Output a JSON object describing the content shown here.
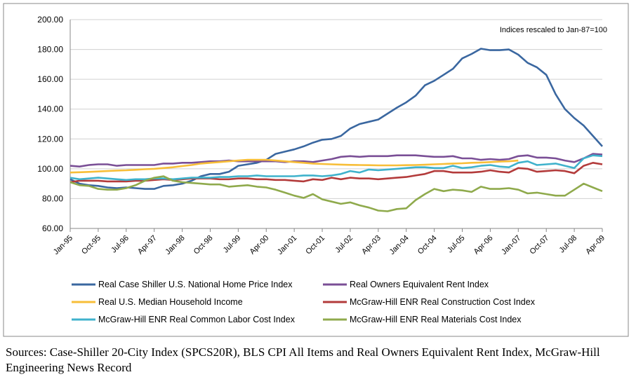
{
  "chart_data": {
    "type": "line",
    "annotation": "Indices rescaled to Jan-87=100",
    "source": "Sources: Case-Shiller 20-City Index (SPCS20R), BLS CPI All Items and Real Owners Equivalent Rent Index, McGraw-Hill Engineering News Record",
    "categories": [
      "Jan-95",
      null,
      null,
      "Oct-95",
      null,
      null,
      "Jul-96",
      null,
      null,
      "Apr-97",
      null,
      null,
      "Jan-98",
      null,
      null,
      "Oct-98",
      null,
      null,
      "Jul-99",
      null,
      null,
      "Apr-00",
      null,
      null,
      "Jan-01",
      null,
      null,
      "Oct-01",
      null,
      null,
      "Jul-02",
      null,
      null,
      "Apr-03",
      null,
      null,
      "Jan-04",
      null,
      null,
      "Oct-04",
      null,
      null,
      "Jul-05",
      null,
      null,
      "Apr-06",
      null,
      null,
      "Jan-07",
      null,
      null,
      "Oct-07",
      null,
      null,
      "Jul-08",
      null,
      null,
      "Apr-09"
    ],
    "ylim": [
      60,
      200
    ],
    "yticks": [
      {
        "value": 60,
        "label": "60.00"
      },
      {
        "value": 80,
        "label": "80.00"
      },
      {
        "value": 100,
        "label": "100.00"
      },
      {
        "value": 120,
        "label": "120.00"
      },
      {
        "value": 140,
        "label": "140.00"
      },
      {
        "value": 160,
        "label": "160.00"
      },
      {
        "value": 180,
        "label": "180.00"
      },
      {
        "value": 200,
        "label": "200.00"
      }
    ],
    "grid": true,
    "series": [
      {
        "name": "Real Case Shiller U.S. National Home Price Index",
        "color": "#3a67a0",
        "values": [
          93,
          90,
          89,
          88.5,
          87.5,
          87,
          87.5,
          87,
          86.5,
          86.5,
          88.5,
          89,
          90,
          92,
          95,
          96.5,
          96.5,
          98,
          102,
          103,
          104,
          106,
          110,
          111.5,
          113,
          115,
          117.5,
          119.5,
          120,
          122,
          127,
          130,
          131.5,
          133,
          137,
          141,
          144.5,
          149,
          156,
          159,
          163,
          167,
          174,
          177,
          180.5,
          179.5,
          179.5,
          180,
          176.5,
          171,
          168,
          163,
          150,
          140,
          134,
          129,
          122,
          115
        ]
      },
      {
        "name": "Real Owners Equivalent Rent Index",
        "color": "#7a4f96",
        "values": [
          102,
          101.5,
          102.5,
          103,
          103,
          102,
          102.5,
          102.5,
          102.5,
          102.5,
          103.5,
          103.5,
          104,
          104,
          104.5,
          105,
          105,
          105.5,
          105,
          105,
          105,
          105,
          105,
          104.5,
          105,
          105,
          104.5,
          105.5,
          106.5,
          108,
          108.5,
          108,
          108.5,
          108.5,
          108.5,
          109,
          109,
          109,
          108.5,
          108,
          108,
          108.5,
          107,
          107,
          106,
          106.5,
          106,
          106.5,
          108.5,
          109,
          107.5,
          107.5,
          107,
          105.5,
          104.5,
          107,
          110,
          109.5
        ]
      },
      {
        "name": "Real U.S. Median Household Income",
        "color": "#f7be38",
        "values": [
          97.5,
          97.7,
          97.9,
          98.2,
          98.5,
          98.8,
          99,
          99.3,
          99.7,
          100,
          100.5,
          101,
          101.8,
          102.5,
          103.5,
          104,
          104.5,
          105,
          105.5,
          106,
          106,
          106,
          105.5,
          105,
          104.5,
          104,
          103.5,
          103.2,
          103,
          102.8,
          102.6,
          102.5,
          102.4,
          102.3,
          102.3,
          102.3,
          102.4,
          102.5,
          102.7,
          103,
          103.2,
          103.5,
          103.7,
          104,
          104.2,
          104.5,
          104.8,
          105,
          105.5,
          null,
          null,
          null,
          null,
          null,
          null,
          null,
          null,
          null
        ]
      },
      {
        "name": "McGraw-Hill ENR Real Construction Cost Index",
        "color": "#b33b3b",
        "values": [
          91,
          92,
          92,
          92,
          91.5,
          91.5,
          91.5,
          92,
          92,
          92.5,
          93,
          92.5,
          93,
          93.5,
          93.5,
          93.5,
          93,
          93,
          93.5,
          93.5,
          93,
          93,
          92.5,
          92.5,
          92,
          91.5,
          93,
          92.5,
          94,
          93,
          94,
          93.5,
          93.5,
          93,
          93.5,
          94,
          94.5,
          95.5,
          96.5,
          98.5,
          98.5,
          97.5,
          97.5,
          97.5,
          98,
          99,
          98,
          97.5,
          100.5,
          100,
          98,
          98.5,
          99,
          98.5,
          97,
          102,
          104,
          103
        ]
      },
      {
        "name": "McGraw-Hill ENR Real Common Labor Cost Index",
        "color": "#3fb2cc",
        "values": [
          94,
          93,
          93.5,
          94,
          93.5,
          93,
          92.5,
          93,
          93,
          93.5,
          93.5,
          93,
          93.5,
          94,
          94,
          94,
          94.5,
          94.5,
          95,
          95,
          95.5,
          95,
          95,
          95,
          95,
          95.5,
          95.5,
          95,
          95.5,
          96.5,
          98.5,
          97.5,
          99.5,
          99,
          99.5,
          100,
          100.5,
          101,
          101,
          100.5,
          100.5,
          102,
          100.5,
          101,
          102,
          102.5,
          101.5,
          101,
          104,
          105,
          102.5,
          103,
          103.5,
          102,
          100.5,
          107,
          109,
          108.5
        ]
      },
      {
        "name": "McGraw-Hill ENR Real Materials Cost Index",
        "color": "#8faa4c",
        "values": [
          91,
          89,
          88.5,
          86.5,
          86,
          86,
          87,
          89,
          92,
          94,
          95,
          92,
          91,
          90.5,
          90,
          89.5,
          89.5,
          88,
          88.5,
          89,
          88,
          87.5,
          86,
          84,
          82,
          80.5,
          83,
          79.5,
          78,
          76.5,
          77.5,
          75.5,
          74,
          72,
          71.5,
          73,
          73.5,
          79,
          83,
          86.5,
          85,
          86,
          85.5,
          84.5,
          88,
          86.5,
          86.5,
          87,
          86,
          83.5,
          84,
          83,
          82,
          82,
          86,
          90,
          87.5,
          85
        ]
      }
    ]
  }
}
